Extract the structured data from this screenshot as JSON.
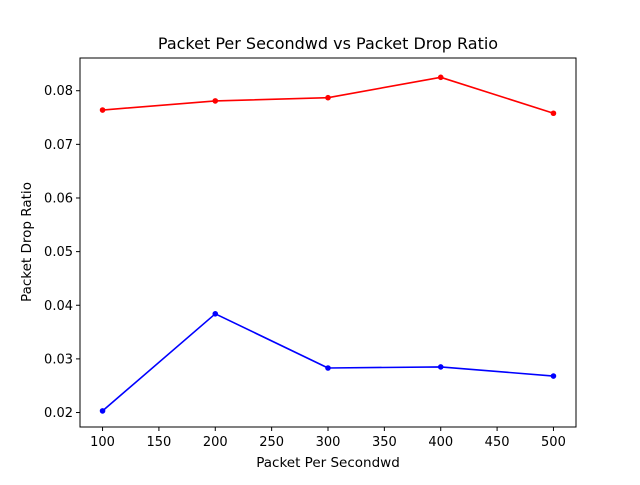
{
  "chart_data": {
    "type": "line",
    "title": "Packet Per Secondwd vs Packet Drop Ratio",
    "xlabel": "Packet Per Secondwd",
    "ylabel": "Packet Drop Ratio",
    "x": [
      100,
      200,
      300,
      400,
      500
    ],
    "xlim": [
      80,
      520
    ],
    "ylim": [
      0.0173,
      0.0861
    ],
    "xticks": [
      100,
      150,
      200,
      250,
      300,
      350,
      400,
      450,
      500
    ],
    "yticks": [
      0.02,
      0.03,
      0.04,
      0.05,
      0.06,
      0.07,
      0.08
    ],
    "grid": false,
    "legend": "none",
    "series": [
      {
        "color": "#ff0000",
        "values": [
          0.0764,
          0.0781,
          0.0787,
          0.0825,
          0.0758
        ]
      },
      {
        "color": "#0000ff",
        "values": [
          0.0203,
          0.0384,
          0.0283,
          0.0285,
          0.0268
        ]
      }
    ]
  }
}
